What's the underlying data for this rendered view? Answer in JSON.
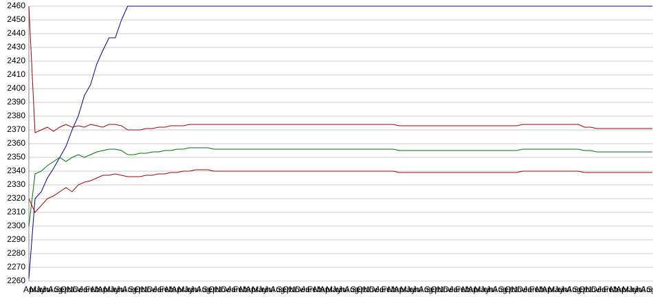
{
  "chart_data": {
    "type": "line",
    "categories": [
      "Apr",
      "May",
      "Jun",
      "Jul",
      "Aug",
      "Sep",
      "Oct",
      "Nov",
      "Dec",
      "Jan",
      "Feb",
      "Mar",
      "Apr",
      "May",
      "Jun",
      "Jul",
      "Aug",
      "Sep",
      "Oct",
      "Nov",
      "Dec",
      "Jan",
      "Feb",
      "Mar",
      "Apr",
      "May",
      "Jun",
      "Jul",
      "Aug",
      "Sep",
      "Oct",
      "Nov",
      "Dec",
      "Jan",
      "Feb",
      "Mar",
      "Apr",
      "May",
      "Jun",
      "Jul",
      "Aug",
      "Sep",
      "Oct",
      "Nov",
      "Dec",
      "Jan",
      "Feb",
      "Mar",
      "Apr",
      "May",
      "Jun",
      "Jul",
      "Aug",
      "Sep",
      "Oct",
      "Nov",
      "Dec",
      "Jan",
      "Feb",
      "Mar",
      "Apr",
      "May",
      "Jun",
      "Jul",
      "Aug",
      "Sep",
      "Oct",
      "Nov",
      "Dec",
      "Jan",
      "Feb",
      "Mar",
      "Apr",
      "May",
      "Jun",
      "Jul",
      "Aug",
      "Sep",
      "Oct",
      "Nov",
      "Dec",
      "Jan",
      "Feb",
      "Mar",
      "Apr",
      "May",
      "Jun",
      "Jul",
      "Aug",
      "Sep",
      "Oct",
      "Nov",
      "Dec",
      "Jan",
      "Feb",
      "Mar",
      "Apr",
      "May",
      "Jun",
      "Jul",
      "Aug",
      "Sep"
    ],
    "series": [
      {
        "color": "#00008b",
        "values": [
          2262,
          2320,
          2325,
          2335,
          2342,
          2350,
          2358,
          2370,
          2380,
          2395,
          2403,
          2418,
          2428,
          2437,
          2437,
          2450,
          2460,
          2460,
          2460,
          2460,
          2460,
          2460,
          2460,
          2460,
          2460,
          2460,
          2460,
          2460,
          2460,
          2460,
          2460,
          2460,
          2460,
          2460,
          2460,
          2460,
          2460,
          2460,
          2460,
          2460,
          2460,
          2460,
          2460,
          2460,
          2460,
          2460,
          2460,
          2460,
          2460,
          2460,
          2460,
          2460,
          2460,
          2460,
          2460,
          2460,
          2460,
          2460,
          2460,
          2460,
          2460,
          2460,
          2460,
          2460,
          2460,
          2460,
          2460,
          2460,
          2460,
          2460,
          2460,
          2460,
          2460,
          2460,
          2460,
          2460,
          2460,
          2460,
          2460,
          2460,
          2460,
          2460,
          2460,
          2460,
          2460,
          2460,
          2460,
          2460,
          2460,
          2460,
          2460,
          2460,
          2460,
          2460,
          2460,
          2460,
          2460,
          2460,
          2460,
          2460,
          2460,
          2460
        ]
      },
      {
        "color": "#a00000",
        "values": [
          2460,
          2368,
          2370,
          2372,
          2369,
          2372,
          2374,
          2372,
          2373,
          2372,
          2374,
          2373,
          2372,
          2374,
          2374,
          2373,
          2370,
          2370,
          2370,
          2371,
          2371,
          2372,
          2372,
          2373,
          2373,
          2373,
          2374,
          2374,
          2374,
          2374,
          2374,
          2374,
          2374,
          2374,
          2374,
          2374,
          2374,
          2374,
          2374,
          2374,
          2374,
          2374,
          2374,
          2374,
          2374,
          2374,
          2374,
          2374,
          2374,
          2374,
          2374,
          2374,
          2374,
          2374,
          2374,
          2374,
          2374,
          2374,
          2374,
          2374,
          2373,
          2373,
          2373,
          2373,
          2373,
          2373,
          2373,
          2373,
          2373,
          2373,
          2373,
          2373,
          2373,
          2373,
          2373,
          2373,
          2373,
          2373,
          2373,
          2373,
          2374,
          2374,
          2374,
          2374,
          2374,
          2374,
          2374,
          2374,
          2374,
          2374,
          2372,
          2372,
          2371,
          2371,
          2371,
          2371,
          2371,
          2371,
          2371,
          2371,
          2371,
          2371
        ]
      },
      {
        "color": "#007000",
        "values": [
          2300,
          2338,
          2340,
          2344,
          2347,
          2350,
          2347,
          2350,
          2352,
          2350,
          2352,
          2354,
          2355,
          2356,
          2356,
          2355,
          2352,
          2352,
          2353,
          2353,
          2354,
          2354,
          2355,
          2355,
          2356,
          2356,
          2357,
          2357,
          2357,
          2357,
          2356,
          2356,
          2356,
          2356,
          2356,
          2356,
          2356,
          2356,
          2356,
          2356,
          2356,
          2356,
          2356,
          2356,
          2356,
          2356,
          2356,
          2356,
          2356,
          2356,
          2356,
          2356,
          2356,
          2356,
          2356,
          2356,
          2356,
          2356,
          2356,
          2356,
          2355,
          2355,
          2355,
          2355,
          2355,
          2355,
          2355,
          2355,
          2355,
          2355,
          2355,
          2355,
          2355,
          2355,
          2355,
          2355,
          2355,
          2355,
          2355,
          2355,
          2356,
          2356,
          2356,
          2356,
          2356,
          2356,
          2356,
          2356,
          2356,
          2356,
          2355,
          2355,
          2354,
          2354,
          2354,
          2354,
          2354,
          2354,
          2354,
          2354,
          2354,
          2354
        ]
      },
      {
        "color": "#a00000",
        "values": [
          2320,
          2310,
          2315,
          2320,
          2322,
          2325,
          2328,
          2325,
          2330,
          2332,
          2333,
          2335,
          2337,
          2337,
          2338,
          2337,
          2336,
          2336,
          2336,
          2337,
          2337,
          2338,
          2338,
          2339,
          2339,
          2340,
          2340,
          2341,
          2341,
          2341,
          2340,
          2340,
          2340,
          2340,
          2340,
          2340,
          2340,
          2340,
          2340,
          2340,
          2340,
          2340,
          2340,
          2340,
          2340,
          2340,
          2340,
          2340,
          2340,
          2340,
          2340,
          2340,
          2340,
          2340,
          2340,
          2340,
          2340,
          2340,
          2340,
          2340,
          2339,
          2339,
          2339,
          2339,
          2339,
          2339,
          2339,
          2339,
          2339,
          2339,
          2339,
          2339,
          2339,
          2339,
          2339,
          2339,
          2339,
          2339,
          2339,
          2339,
          2340,
          2340,
          2340,
          2340,
          2340,
          2340,
          2340,
          2340,
          2340,
          2340,
          2339,
          2339,
          2339,
          2339,
          2339,
          2339,
          2339,
          2339,
          2339,
          2339,
          2339,
          2339
        ]
      }
    ],
    "ylim": [
      2260,
      2460
    ],
    "yticks": [
      2260,
      2270,
      2280,
      2290,
      2300,
      2310,
      2320,
      2330,
      2340,
      2350,
      2360,
      2370,
      2380,
      2390,
      2400,
      2410,
      2420,
      2430,
      2440,
      2450,
      2460
    ],
    "grid": true
  }
}
